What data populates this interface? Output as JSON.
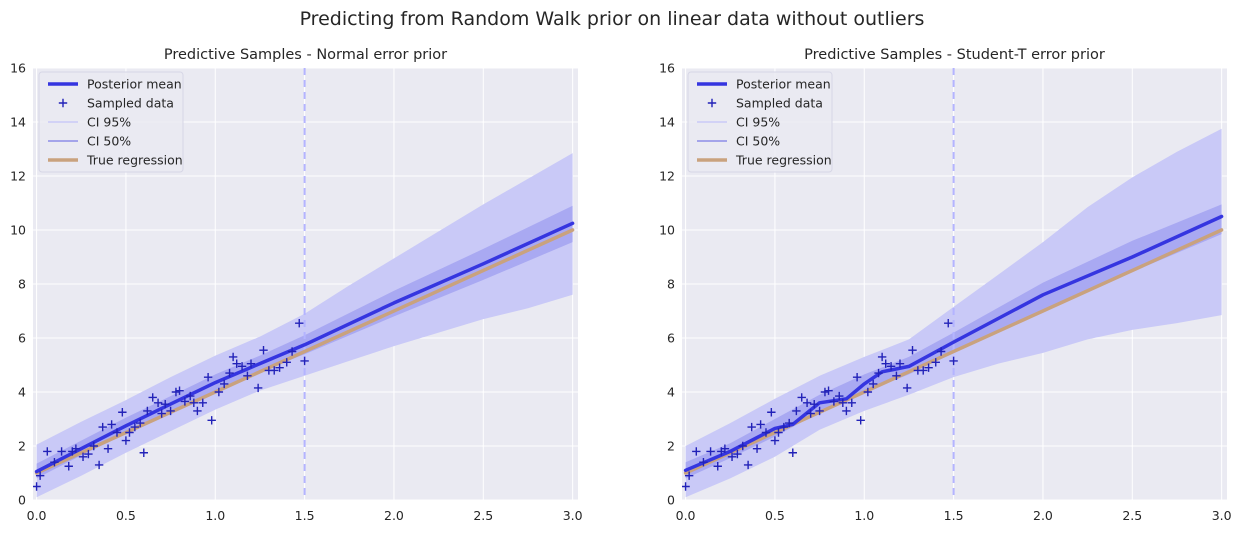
{
  "figure": {
    "title": "Predicting from Random Walk prior on linear data without outliers"
  },
  "chart_data": [
    {
      "type": "line",
      "title": "Predictive Samples - Normal error prior",
      "xlabel": "",
      "ylabel": "",
      "xlim": [
        -0.02,
        3.03
      ],
      "ylim": [
        0,
        16
      ],
      "xticks": [
        "0.0",
        "0.5",
        "1.0",
        "1.5",
        "2.0",
        "2.5",
        "3.0"
      ],
      "yticks": [
        "0",
        "2",
        "4",
        "6",
        "8",
        "10",
        "12",
        "14",
        "16"
      ],
      "grid": true,
      "legend_position": "top-left",
      "legend": [
        "Posterior mean",
        "Sampled data",
        "CI 95%",
        "CI 50%",
        "True regression"
      ],
      "vline_x": 1.5,
      "true_regression": {
        "x": [
          0,
          3
        ],
        "y": [
          1,
          10
        ]
      },
      "posterior_mean": {
        "x": [
          0,
          0.25,
          0.5,
          0.75,
          1.0,
          1.25,
          1.5,
          2.0,
          2.5,
          3.0
        ],
        "y": [
          1.05,
          1.9,
          2.75,
          3.55,
          4.35,
          5.05,
          5.75,
          7.3,
          8.75,
          10.25
        ]
      },
      "ci_95": {
        "x": [
          0,
          0.25,
          0.5,
          0.75,
          1.0,
          1.25,
          1.5,
          1.75,
          2.0,
          2.25,
          2.5,
          2.75,
          3.0
        ],
        "lower": [
          0.1,
          0.9,
          1.75,
          2.55,
          3.35,
          4.05,
          4.6,
          5.15,
          5.7,
          6.2,
          6.7,
          7.1,
          7.6
        ],
        "upper": [
          2.05,
          2.9,
          3.7,
          4.55,
          5.35,
          6.05,
          6.9,
          7.95,
          8.95,
          9.95,
          10.95,
          11.9,
          12.85
        ]
      },
      "ci_50": {
        "x": [
          0,
          0.25,
          0.5,
          0.75,
          1.0,
          1.25,
          1.5,
          2.0,
          2.5,
          3.0
        ],
        "lower": [
          0.8,
          1.65,
          2.45,
          3.25,
          4.05,
          4.75,
          5.4,
          6.8,
          8.15,
          9.55
        ],
        "upper": [
          1.35,
          2.2,
          3.05,
          3.85,
          4.65,
          5.35,
          6.1,
          7.75,
          9.3,
          10.9
        ]
      },
      "sampled_data": {
        "x": [
          0.0,
          0.02,
          0.06,
          0.1,
          0.14,
          0.18,
          0.2,
          0.22,
          0.26,
          0.29,
          0.32,
          0.35,
          0.37,
          0.4,
          0.42,
          0.45,
          0.48,
          0.5,
          0.52,
          0.55,
          0.58,
          0.6,
          0.62,
          0.65,
          0.68,
          0.7,
          0.72,
          0.75,
          0.78,
          0.8,
          0.83,
          0.86,
          0.88,
          0.9,
          0.93,
          0.96,
          0.98,
          1.02,
          1.05,
          1.08,
          1.1,
          1.12,
          1.15,
          1.18,
          1.2,
          1.24,
          1.27,
          1.3,
          1.33,
          1.36,
          1.4,
          1.43,
          1.47,
          1.5
        ],
        "y": [
          0.5,
          0.9,
          1.8,
          1.4,
          1.8,
          1.25,
          1.8,
          1.9,
          1.6,
          1.7,
          2.0,
          1.3,
          2.7,
          1.9,
          2.8,
          2.5,
          3.25,
          2.2,
          2.5,
          2.7,
          2.85,
          1.75,
          3.3,
          3.8,
          3.6,
          3.2,
          3.55,
          3.3,
          4.0,
          4.05,
          3.65,
          3.85,
          3.6,
          3.3,
          3.6,
          4.55,
          2.95,
          4.0,
          4.3,
          4.7,
          5.3,
          5.05,
          4.95,
          4.6,
          5.05,
          4.15,
          5.55,
          4.8,
          4.8,
          4.9,
          5.1,
          5.5,
          6.55,
          5.15
        ]
      }
    },
    {
      "type": "line",
      "title": "Predictive Samples - Student-T error prior",
      "xlabel": "",
      "ylabel": "",
      "xlim": [
        -0.02,
        3.03
      ],
      "ylim": [
        0,
        16
      ],
      "xticks": [
        "0.0",
        "0.5",
        "1.0",
        "1.5",
        "2.0",
        "2.5",
        "3.0"
      ],
      "yticks": [
        "0",
        "2",
        "4",
        "6",
        "8",
        "10",
        "12",
        "14",
        "16"
      ],
      "grid": true,
      "legend_position": "top-left",
      "legend": [
        "Posterior mean",
        "Sampled data",
        "CI 95%",
        "CI 50%",
        "True regression"
      ],
      "vline_x": 1.5,
      "true_regression": {
        "x": [
          0,
          3
        ],
        "y": [
          1,
          10
        ]
      },
      "posterior_mean": {
        "x": [
          0,
          0.25,
          0.5,
          0.6,
          0.75,
          0.9,
          1.0,
          1.1,
          1.25,
          1.5,
          2.0,
          2.5,
          3.0
        ],
        "y": [
          1.1,
          1.8,
          2.65,
          2.8,
          3.6,
          3.75,
          4.3,
          4.75,
          4.95,
          5.85,
          7.6,
          9.0,
          10.5
        ]
      },
      "ci_95": {
        "x": [
          0,
          0.25,
          0.5,
          0.75,
          1.0,
          1.25,
          1.5,
          1.75,
          2.0,
          2.25,
          2.5,
          2.75,
          3.0
        ],
        "lower": [
          0.1,
          0.8,
          1.6,
          2.6,
          3.3,
          3.9,
          4.55,
          5.05,
          5.45,
          5.95,
          6.3,
          6.55,
          6.85
        ],
        "upper": [
          2.0,
          2.85,
          3.75,
          4.6,
          5.3,
          5.95,
          7.15,
          8.35,
          9.55,
          10.85,
          11.95,
          12.9,
          13.75
        ]
      },
      "ci_50": {
        "x": [
          0,
          0.25,
          0.5,
          0.75,
          1.0,
          1.25,
          1.5,
          2.0,
          2.5,
          3.0
        ],
        "lower": [
          0.8,
          1.55,
          2.35,
          3.25,
          4.0,
          4.65,
          5.45,
          7.05,
          8.45,
          9.85
        ],
        "upper": [
          1.4,
          2.1,
          3.0,
          3.9,
          4.65,
          5.3,
          6.2,
          8.05,
          9.6,
          10.95
        ]
      },
      "sampled_data": {
        "x": [
          0.0,
          0.02,
          0.06,
          0.1,
          0.14,
          0.18,
          0.2,
          0.22,
          0.26,
          0.29,
          0.32,
          0.35,
          0.37,
          0.4,
          0.42,
          0.45,
          0.48,
          0.5,
          0.52,
          0.55,
          0.58,
          0.6,
          0.62,
          0.65,
          0.68,
          0.7,
          0.72,
          0.75,
          0.78,
          0.8,
          0.83,
          0.86,
          0.88,
          0.9,
          0.93,
          0.96,
          0.98,
          1.02,
          1.05,
          1.08,
          1.1,
          1.12,
          1.15,
          1.18,
          1.2,
          1.24,
          1.27,
          1.3,
          1.33,
          1.36,
          1.4,
          1.43,
          1.47,
          1.5
        ],
        "y": [
          0.5,
          0.9,
          1.8,
          1.4,
          1.8,
          1.25,
          1.8,
          1.9,
          1.6,
          1.7,
          2.0,
          1.3,
          2.7,
          1.9,
          2.8,
          2.5,
          3.25,
          2.2,
          2.5,
          2.7,
          2.85,
          1.75,
          3.3,
          3.8,
          3.6,
          3.2,
          3.55,
          3.3,
          4.0,
          4.05,
          3.65,
          3.85,
          3.6,
          3.3,
          3.6,
          4.55,
          2.95,
          4.0,
          4.3,
          4.7,
          5.3,
          5.05,
          4.95,
          4.6,
          5.05,
          4.15,
          5.55,
          4.8,
          4.8,
          4.9,
          5.1,
          5.5,
          6.55,
          5.15
        ]
      }
    }
  ],
  "colors": {
    "axes_bg": "#eaeaf2",
    "grid": "#ffffff",
    "ci_95_fill": "#c9c9f7",
    "ci_50_fill": "#a9a9f2",
    "posterior_mean": "#3535e0",
    "sampled_data": "#2222b8",
    "true_regression": "#c9a27e",
    "vline": "#b4b4ff",
    "text": "#262626"
  }
}
